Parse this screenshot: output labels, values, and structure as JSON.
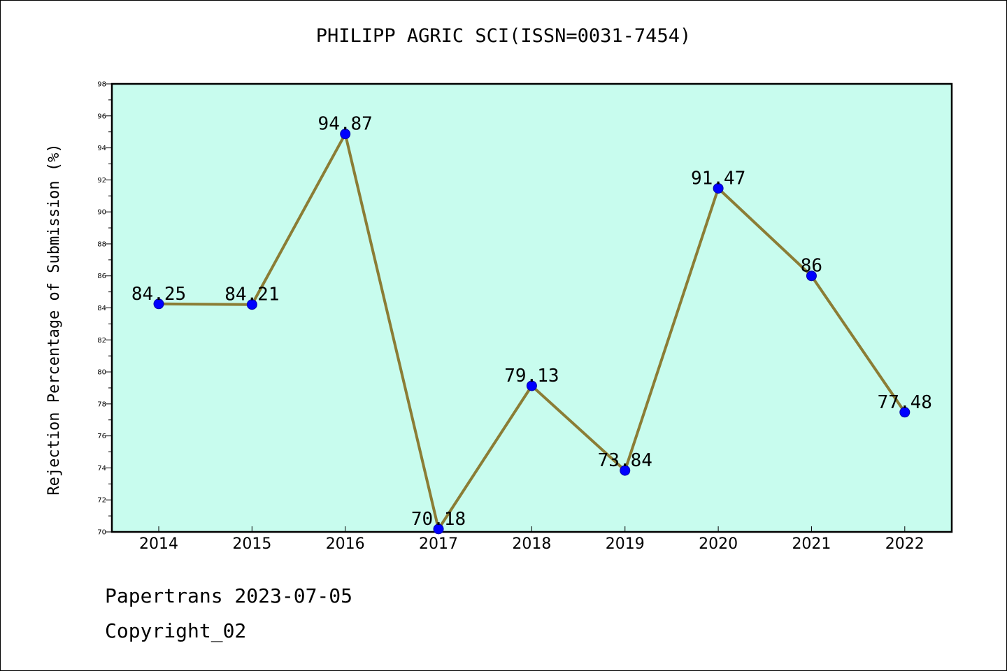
{
  "chart_data": {
    "type": "line",
    "title": "PHILIPP AGRIC SCI(ISSN=0031-7454)",
    "xlabel": "",
    "ylabel": "Rejection Percentage of Submission (%)",
    "x": [
      "2014",
      "2015",
      "2016",
      "2017",
      "2018",
      "2019",
      "2020",
      "2021",
      "2022"
    ],
    "values": [
      84.25,
      84.21,
      94.87,
      70.18,
      79.13,
      73.84,
      91.47,
      86,
      77.48
    ],
    "data_labels": [
      "84.25",
      "84.21",
      "94.87",
      "70.18",
      "79.13",
      "73.84",
      "91.47",
      "86",
      "77.48"
    ],
    "ylim": [
      70,
      98
    ],
    "yticks": [
      "70",
      "72",
      "74",
      "76",
      "78",
      "80",
      "82",
      "84",
      "86",
      "88",
      "90",
      "92",
      "94",
      "96",
      "98"
    ],
    "grid": false,
    "colors": {
      "plot_background": "#c8fcee",
      "line": "#8b7d35",
      "marker": "#0000ff"
    }
  },
  "footer": {
    "line1": "Papertrans 2023-07-05",
    "line2": "Copyright_02"
  }
}
